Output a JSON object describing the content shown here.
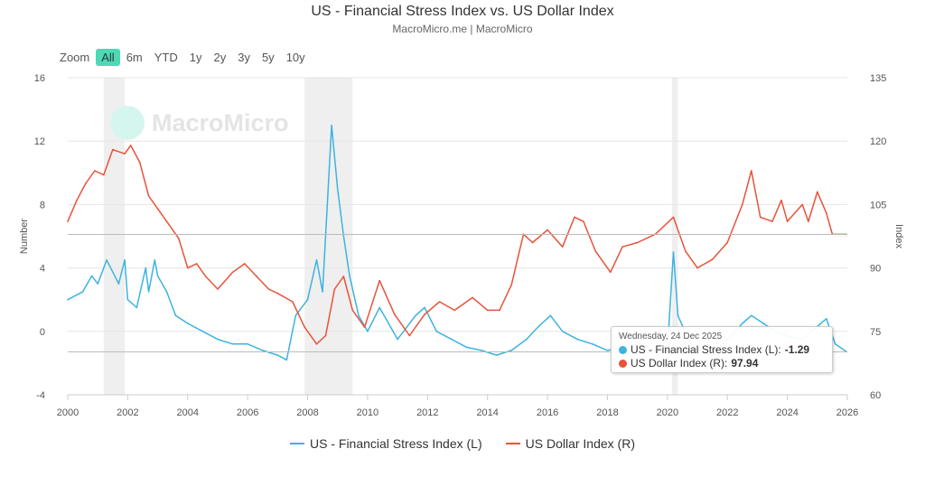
{
  "title": "US - Financial Stress Index vs. US Dollar Index",
  "subtitle": "MacroMicro.me | MacroMicro",
  "watermark": "MacroMicro",
  "zoom": {
    "label": "Zoom",
    "options": [
      "All",
      "6m",
      "YTD",
      "1y",
      "2y",
      "3y",
      "5y",
      "10y"
    ],
    "selected": "All"
  },
  "colors": {
    "fsi": "#3db3e0",
    "dxy": "#e8533a",
    "selected_zoom": "#4fd8b6",
    "recession": "#efefef"
  },
  "tooltip": {
    "date": "Wednesday, 24 Dec 2025",
    "rows": [
      {
        "label": "US - Financial Stress Index (L): ",
        "value": "-1.29",
        "color": "#3db3e0"
      },
      {
        "label": "US Dollar Index (R): ",
        "value": "97.94",
        "color": "#e8533a"
      }
    ]
  },
  "chart_data": {
    "type": "line",
    "xlabel": "",
    "ylabel_left": "Number",
    "ylabel_right": "Index",
    "xlim": [
      2000,
      2026
    ],
    "ylim_left": [
      -4,
      16
    ],
    "ylim_right": [
      60,
      135
    ],
    "x_ticks": [
      "2000",
      "2002",
      "2004",
      "2006",
      "2008",
      "2010",
      "2012",
      "2014",
      "2016",
      "2018",
      "2020",
      "2022",
      "2024",
      "2026"
    ],
    "y_ticks_left": [
      "16",
      "12",
      "8",
      "4",
      "0",
      "-4"
    ],
    "y_ticks_right": [
      "135",
      "120",
      "105",
      "90",
      "75",
      "60"
    ],
    "grid": true,
    "legend": "bottom",
    "recessions": [
      [
        2001.2,
        2001.9
      ],
      [
        2007.9,
        2009.5
      ],
      [
        2020.15,
        2020.35
      ]
    ],
    "series": [
      {
        "name": "US - Financial Stress Index (L)",
        "axis": "left",
        "x": [
          2000.0,
          2000.5,
          2000.8,
          2001.0,
          2001.3,
          2001.7,
          2001.9,
          2002.0,
          2002.3,
          2002.6,
          2002.7,
          2002.9,
          2003.0,
          2003.3,
          2003.6,
          2004.0,
          2004.5,
          2005.0,
          2005.5,
          2006.0,
          2006.5,
          2007.0,
          2007.3,
          2007.6,
          2008.0,
          2008.3,
          2008.5,
          2008.8,
          2009.0,
          2009.2,
          2009.4,
          2009.7,
          2010.0,
          2010.4,
          2010.7,
          2011.0,
          2011.6,
          2011.9,
          2012.3,
          2012.8,
          2013.3,
          2013.8,
          2014.3,
          2014.8,
          2015.3,
          2015.7,
          2016.1,
          2016.5,
          2017.0,
          2017.5,
          2018.0,
          2018.5,
          2019.0,
          2019.5,
          2020.0,
          2020.2,
          2020.35,
          2020.7,
          2021.0,
          2021.5,
          2022.0,
          2022.5,
          2022.8,
          2023.2,
          2023.6,
          2024.0,
          2024.5,
          2025.3,
          2025.6,
          2025.98
        ],
        "y": [
          2,
          2.5,
          3.5,
          3,
          4.5,
          3,
          4.5,
          2,
          1.5,
          4,
          2.5,
          4.5,
          3.5,
          2.5,
          1,
          0.5,
          0,
          -0.5,
          -0.8,
          -0.8,
          -1.2,
          -1.5,
          -1.8,
          1,
          2,
          4.5,
          2.5,
          13,
          9,
          6,
          3.5,
          1,
          0,
          1.5,
          0.5,
          -0.5,
          1,
          1.5,
          0,
          -0.5,
          -1,
          -1.2,
          -1.5,
          -1.2,
          -0.5,
          0.3,
          1,
          0,
          -0.5,
          -0.8,
          -1.2,
          -1,
          -0.8,
          -1.2,
          -1.2,
          5,
          1,
          -0.5,
          -1.3,
          -1.5,
          -0.5,
          0.5,
          1,
          0.5,
          0,
          -0.3,
          -0.5,
          0.8,
          -0.8,
          -1.29
        ]
      },
      {
        "name": "US Dollar Index (R)",
        "axis": "right",
        "x": [
          2000.0,
          2000.3,
          2000.6,
          2000.9,
          2001.2,
          2001.5,
          2001.9,
          2002.1,
          2002.4,
          2002.7,
          2003.0,
          2003.3,
          2003.7,
          2004.0,
          2004.3,
          2004.6,
          2005.0,
          2005.5,
          2005.9,
          2006.3,
          2006.7,
          2007.0,
          2007.5,
          2007.9,
          2008.3,
          2008.6,
          2008.9,
          2009.2,
          2009.5,
          2009.9,
          2010.4,
          2010.9,
          2011.4,
          2011.9,
          2012.4,
          2012.9,
          2013.5,
          2014.0,
          2014.4,
          2014.8,
          2015.2,
          2015.5,
          2016.0,
          2016.5,
          2016.9,
          2017.2,
          2017.6,
          2018.1,
          2018.5,
          2019.0,
          2019.6,
          2020.2,
          2020.6,
          2021.0,
          2021.5,
          2022.0,
          2022.5,
          2022.8,
          2023.1,
          2023.5,
          2023.8,
          2024.0,
          2024.5,
          2024.7,
          2025.0,
          2025.3,
          2025.5,
          2025.98
        ],
        "y": [
          101,
          106,
          110,
          113,
          112,
          118,
          117,
          119,
          115,
          107,
          104,
          101,
          97,
          90,
          91,
          88,
          85,
          89,
          91,
          88,
          85,
          84,
          82,
          76,
          72,
          74,
          85,
          88,
          80,
          76,
          87,
          79,
          74,
          79,
          82,
          80,
          83,
          80,
          80,
          86,
          98,
          96,
          99,
          95,
          102,
          101,
          94,
          89,
          95,
          96,
          98,
          102,
          94,
          90,
          92,
          96,
          105,
          113,
          102,
          101,
          106,
          101,
          105,
          101,
          108,
          103,
          98,
          97.94
        ]
      }
    ]
  }
}
